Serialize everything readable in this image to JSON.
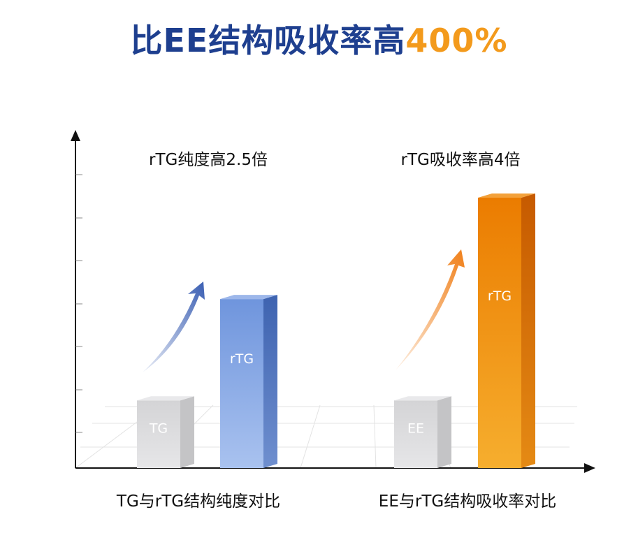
{
  "headline": {
    "main": "比EE结构吸收率高",
    "accent": "400%"
  },
  "colors": {
    "headline_main": "#1e3f8f",
    "headline_accent": "#f39a1c",
    "baseline_bar": "#d9d9d9",
    "blue_bar": "#7fa3e3",
    "orange_bar": "#f08a00",
    "axis": "#111111"
  },
  "chart_data": [
    {
      "type": "bar",
      "title": "rTG纯度高2.5倍",
      "xlabel": "TG与rTG结构纯度对比",
      "ylabel": "",
      "categories": [
        "TG",
        "rTG"
      ],
      "values": [
        1,
        2.5
      ],
      "colors": [
        "#d9d9d9",
        "#7fa3e3"
      ],
      "arrow": "blue",
      "ylim": [
        0,
        4.2
      ],
      "grid": true
    },
    {
      "type": "bar",
      "title": "rTG吸收率高4倍",
      "xlabel": "EE与rTG结构吸收率对比",
      "ylabel": "",
      "categories": [
        "EE",
        "rTG"
      ],
      "values": [
        1,
        4
      ],
      "colors": [
        "#d9d9d9",
        "#f08a00"
      ],
      "arrow": "orange",
      "ylim": [
        0,
        4.2
      ],
      "grid": true
    }
  ]
}
